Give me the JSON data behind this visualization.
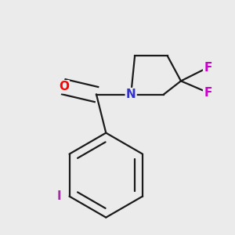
{
  "background_color": "#ebebeb",
  "bond_color": "#1a1a1a",
  "bond_width": 1.6,
  "atom_labels": {
    "O": {
      "color": "#ff0000",
      "fontsize": 11,
      "fontweight": "bold"
    },
    "N": {
      "color": "#3333cc",
      "fontsize": 11,
      "fontweight": "bold"
    },
    "F": {
      "color": "#cc00cc",
      "fontsize": 11,
      "fontweight": "bold"
    },
    "I": {
      "color": "#993399",
      "fontsize": 11,
      "fontweight": "bold"
    }
  },
  "figsize": [
    3.0,
    3.0
  ],
  "dpi": 100
}
